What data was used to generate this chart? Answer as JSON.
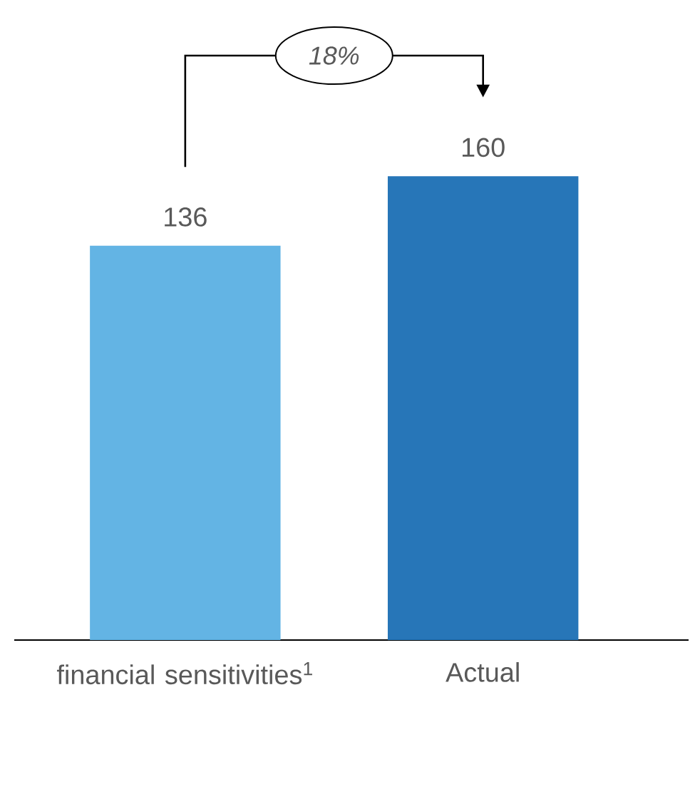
{
  "chart_data": {
    "type": "bar",
    "categories": [
      "financial sensitivities$^{1}$",
      "Actual"
    ],
    "values": [
      136,
      160
    ],
    "colors": [
      "#63b4e4",
      "#2776b8"
    ],
    "data_labels": true,
    "annotations": [
      "*18%*"
    ]
  }
}
